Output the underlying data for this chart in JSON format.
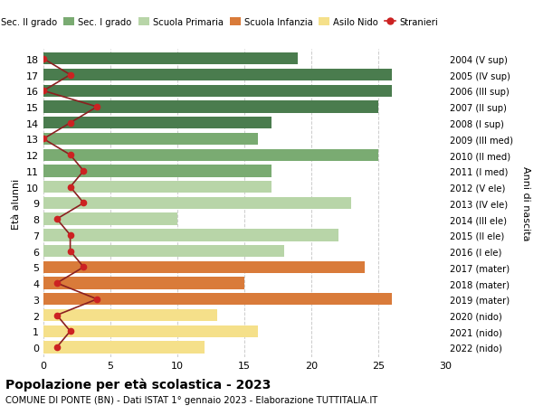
{
  "ages": [
    18,
    17,
    16,
    15,
    14,
    13,
    12,
    11,
    10,
    9,
    8,
    7,
    6,
    5,
    4,
    3,
    2,
    1,
    0
  ],
  "bar_values": [
    19,
    26,
    26,
    25,
    17,
    16,
    25,
    17,
    17,
    23,
    10,
    22,
    18,
    24,
    15,
    26,
    13,
    16,
    12
  ],
  "stranieri_values": [
    0,
    2,
    0,
    4,
    2,
    0,
    2,
    3,
    2,
    3,
    1,
    2,
    2,
    3,
    1,
    4,
    1,
    2,
    1
  ],
  "right_labels": [
    "2004 (V sup)",
    "2005 (IV sup)",
    "2006 (III sup)",
    "2007 (II sup)",
    "2008 (I sup)",
    "2009 (III med)",
    "2010 (II med)",
    "2011 (I med)",
    "2012 (V ele)",
    "2013 (IV ele)",
    "2014 (III ele)",
    "2015 (II ele)",
    "2016 (I ele)",
    "2017 (mater)",
    "2018 (mater)",
    "2019 (mater)",
    "2020 (nido)",
    "2021 (nido)",
    "2022 (nido)"
  ],
  "bar_colors": [
    "#4a7c4e",
    "#4a7c4e",
    "#4a7c4e",
    "#4a7c4e",
    "#4a7c4e",
    "#7aab72",
    "#7aab72",
    "#7aab72",
    "#b8d5a8",
    "#b8d5a8",
    "#b8d5a8",
    "#b8d5a8",
    "#b8d5a8",
    "#d97b3a",
    "#d97b3a",
    "#d97b3a",
    "#f5e08a",
    "#f5e08a",
    "#f5e08a"
  ],
  "legend_labels": [
    "Sec. II grado",
    "Sec. I grado",
    "Scuola Primaria",
    "Scuola Infanzia",
    "Asilo Nido",
    "Stranieri"
  ],
  "legend_colors": [
    "#4a7c4e",
    "#7aab72",
    "#b8d5a8",
    "#d97b3a",
    "#f5e08a",
    "#cc2222"
  ],
  "title": "Popolazione per età scolastica - 2023",
  "subtitle": "COMUNE DI PONTE (BN) - Dati ISTAT 1° gennaio 2023 - Elaborazione TUTTITALIA.IT",
  "ylabel_left": "Età alunni",
  "ylabel_right": "Anni di nascita",
  "xlim": [
    0,
    30
  ],
  "xticks": [
    0,
    5,
    10,
    15,
    20,
    25,
    30
  ],
  "stranieri_color": "#cc2222",
  "line_color": "#8b2020",
  "bar_height": 0.75,
  "background_color": "#ffffff",
  "grid_color": "#cccccc"
}
